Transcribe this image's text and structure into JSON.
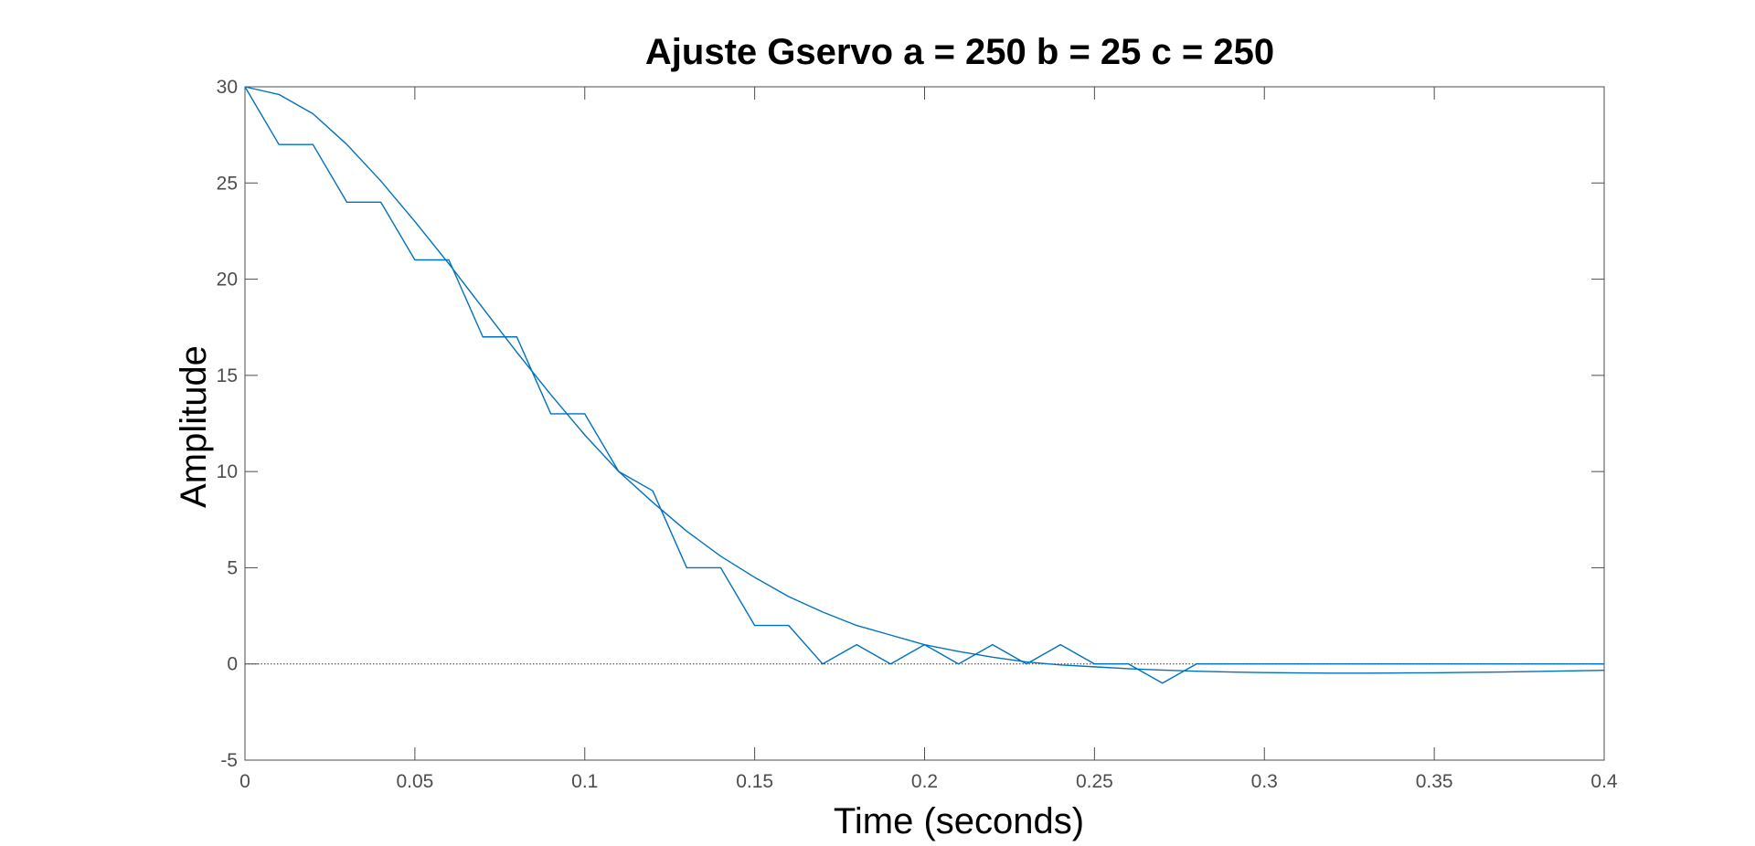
{
  "chart_data": {
    "type": "line",
    "title": "Ajuste Gservo a = 250  b = 25  c = 250",
    "xlabel": "Time (seconds)",
    "ylabel": "Amplitude",
    "xlim": [
      0,
      0.4
    ],
    "ylim": [
      -5,
      30
    ],
    "xticks": [
      0,
      0.05,
      0.1,
      0.15,
      0.2,
      0.25,
      0.3,
      0.35,
      0.4
    ],
    "xtick_labels": [
      "0",
      "0.05",
      "0.1",
      "0.15",
      "0.2",
      "0.25",
      "0.3",
      "0.35",
      "0.4"
    ],
    "yticks": [
      -5,
      0,
      5,
      10,
      15,
      20,
      25,
      30
    ],
    "ytick_labels": [
      "-5",
      "0",
      "5",
      "10",
      "15",
      "20",
      "25",
      "30"
    ],
    "grid": false,
    "reference_line": {
      "y": 0,
      "style": "dotted"
    },
    "colors": {
      "series": "#0072bd",
      "axes": "#4d4d4d"
    },
    "series": [
      {
        "x": [
          0,
          0.01,
          0.02,
          0.03,
          0.04,
          0.05,
          0.06,
          0.07,
          0.08,
          0.09,
          0.1,
          0.11,
          0.12,
          0.13,
          0.14,
          0.15,
          0.16,
          0.17,
          0.18,
          0.19,
          0.2,
          0.21,
          0.22,
          0.23,
          0.24,
          0.25,
          0.26,
          0.27,
          0.28,
          0.4
        ],
        "y": [
          30,
          27,
          27,
          24,
          24,
          21,
          21,
          17,
          17,
          13,
          13,
          10,
          9,
          5,
          5,
          2,
          2,
          0,
          1,
          0,
          1,
          0,
          1,
          0,
          1,
          0,
          0,
          -1,
          0,
          0
        ]
      },
      {
        "x": [
          0,
          0.01,
          0.02,
          0.03,
          0.04,
          0.05,
          0.06,
          0.07,
          0.08,
          0.09,
          0.1,
          0.11,
          0.12,
          0.13,
          0.14,
          0.15,
          0.16,
          0.17,
          0.18,
          0.19,
          0.2,
          0.21,
          0.22,
          0.23,
          0.24,
          0.25,
          0.26,
          0.27,
          0.28,
          0.29,
          0.3,
          0.31,
          0.32,
          0.33,
          0.34,
          0.35,
          0.36,
          0.37,
          0.38,
          0.39,
          0.4
        ],
        "y": [
          30,
          29.6,
          28.6,
          27.0,
          25.1,
          23.0,
          20.8,
          18.5,
          16.2,
          14.0,
          11.9,
          10.0,
          8.4,
          6.9,
          5.6,
          4.5,
          3.5,
          2.7,
          2.0,
          1.5,
          1.0,
          0.65,
          0.35,
          0.1,
          -0.05,
          -0.15,
          -0.25,
          -0.32,
          -0.38,
          -0.42,
          -0.45,
          -0.47,
          -0.48,
          -0.48,
          -0.47,
          -0.46,
          -0.44,
          -0.42,
          -0.39,
          -0.36,
          -0.33
        ]
      }
    ]
  }
}
